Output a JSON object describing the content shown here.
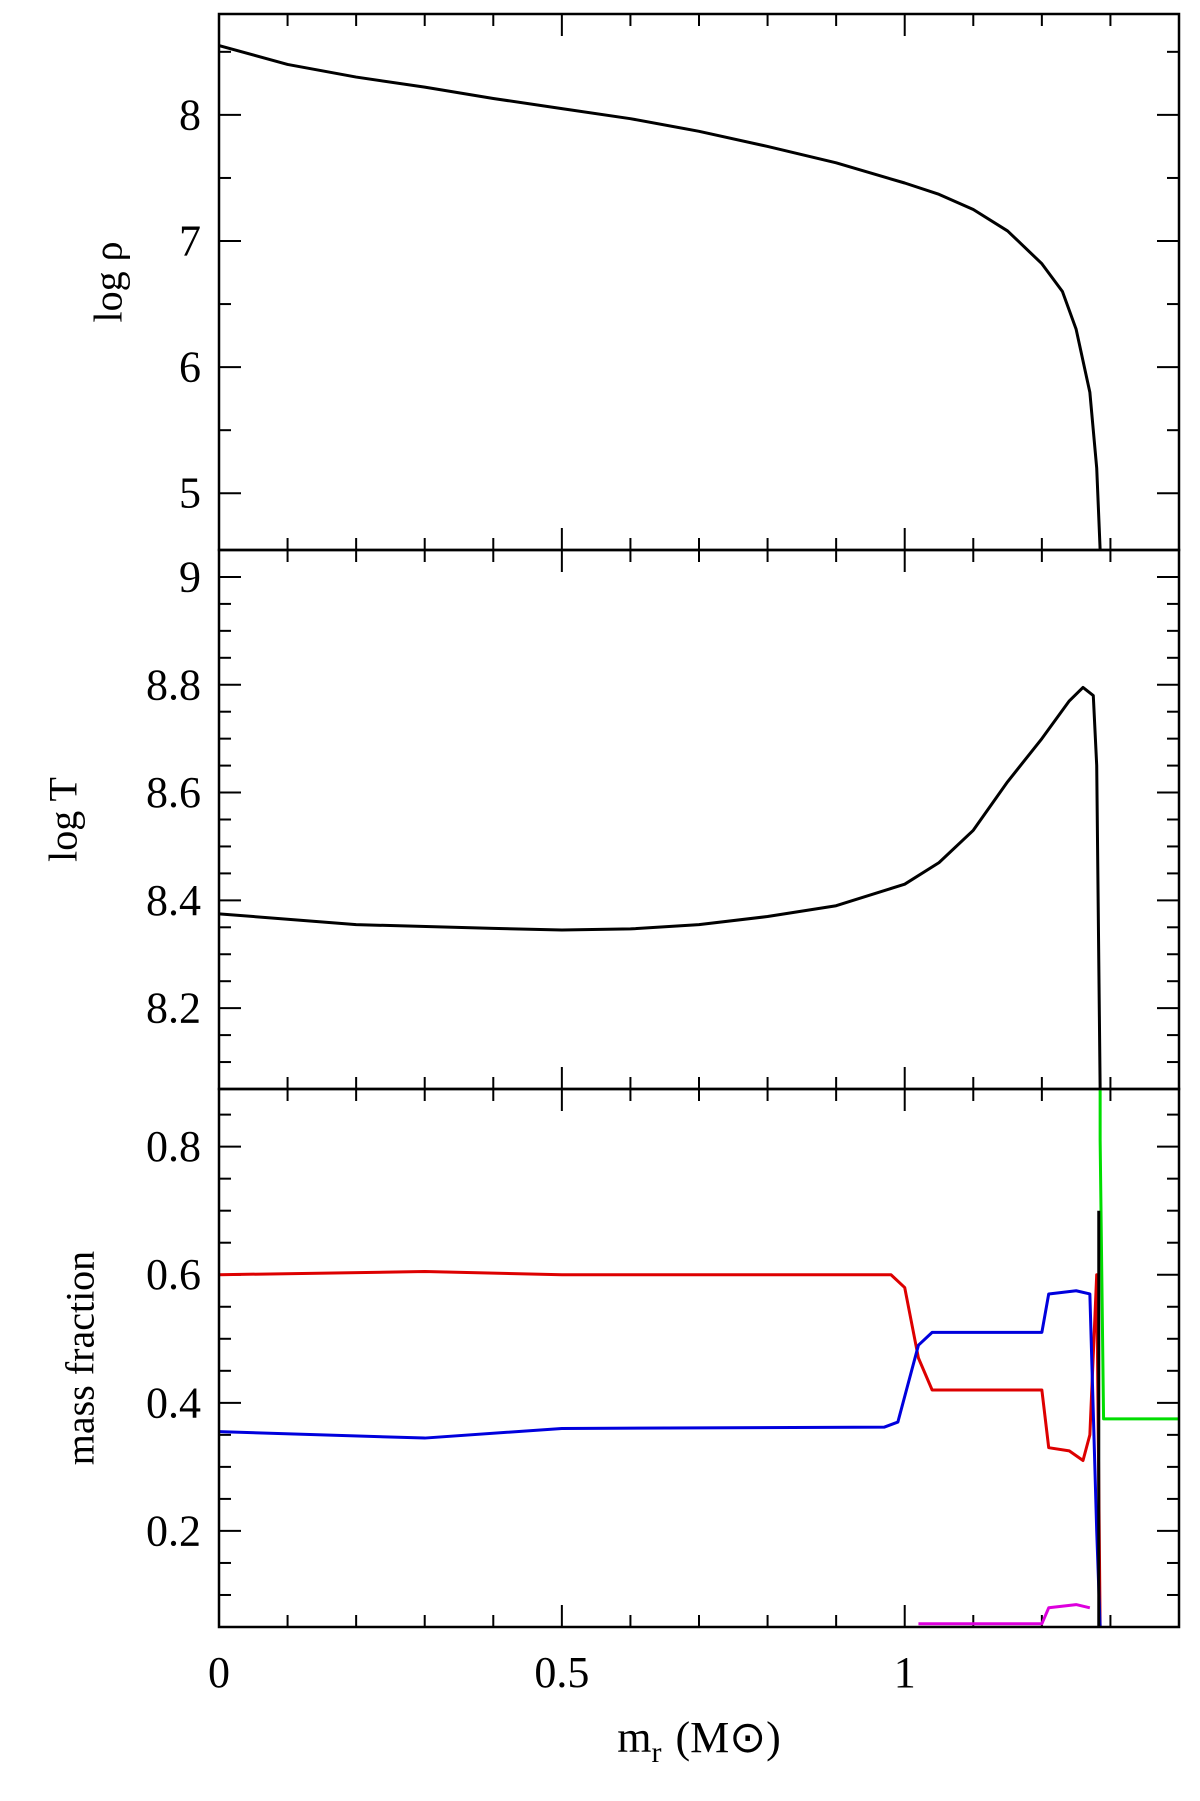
{
  "chart_data": [
    {
      "type": "line",
      "ylabel": "log ρ",
      "xlim": [
        0,
        1.4
      ],
      "xticks": [
        0,
        0.5,
        1
      ],
      "minor_xticks": [
        0.1,
        0.2,
        0.3,
        0.4,
        0.6,
        0.7,
        0.8,
        0.9,
        1.1,
        1.2,
        1.3
      ],
      "xtick_labels": false,
      "ylim": [
        4.55,
        8.8
      ],
      "yticks": [
        5,
        6,
        7,
        8
      ],
      "minor_yticks": [
        5.5,
        6.5,
        7.5,
        8.5
      ],
      "series": [
        {
          "color": "#000000",
          "x": [
            0,
            0.1,
            0.2,
            0.3,
            0.4,
            0.5,
            0.6,
            0.7,
            0.8,
            0.9,
            1.0,
            1.05,
            1.1,
            1.15,
            1.2,
            1.23,
            1.25,
            1.27,
            1.28,
            1.285
          ],
          "values": [
            8.55,
            8.4,
            8.3,
            8.22,
            8.13,
            8.05,
            7.97,
            7.87,
            7.75,
            7.62,
            7.46,
            7.37,
            7.25,
            7.08,
            6.82,
            6.6,
            6.3,
            5.8,
            5.2,
            4.55
          ]
        }
      ]
    },
    {
      "type": "line",
      "ylabel": "log T",
      "xlim": [
        0,
        1.4
      ],
      "xticks": [
        0,
        0.5,
        1
      ],
      "minor_xticks": [
        0.1,
        0.2,
        0.3,
        0.4,
        0.6,
        0.7,
        0.8,
        0.9,
        1.1,
        1.2,
        1.3
      ],
      "xtick_labels": false,
      "ylim": [
        8.05,
        9.05
      ],
      "yticks": [
        8.2,
        8.4,
        8.6,
        8.8,
        9
      ],
      "minor_yticks": [
        8.1,
        8.15,
        8.25,
        8.3,
        8.35,
        8.45,
        8.5,
        8.55,
        8.65,
        8.7,
        8.75,
        8.85,
        8.9,
        8.95
      ],
      "series": [
        {
          "color": "#000000",
          "x": [
            0,
            0.2,
            0.4,
            0.5,
            0.6,
            0.7,
            0.8,
            0.9,
            1.0,
            1.05,
            1.1,
            1.15,
            1.2,
            1.24,
            1.26,
            1.275,
            1.28,
            1.285
          ],
          "values": [
            8.375,
            8.355,
            8.348,
            8.345,
            8.347,
            8.355,
            8.37,
            8.39,
            8.43,
            8.47,
            8.53,
            8.62,
            8.7,
            8.77,
            8.795,
            8.78,
            8.65,
            8.05
          ]
        }
      ]
    },
    {
      "type": "line",
      "ylabel": "mass fraction",
      "xlabel": {
        "main": "m",
        "subscript": "r",
        "unit": "(M⊙)"
      },
      "xlim": [
        0,
        1.4
      ],
      "xticks": [
        0,
        0.5,
        1
      ],
      "minor_xticks": [
        0.1,
        0.2,
        0.3,
        0.4,
        0.6,
        0.7,
        0.8,
        0.9,
        1.1,
        1.2,
        1.3
      ],
      "xtick_labels": true,
      "ylim": [
        0.05,
        0.89
      ],
      "yticks": [
        0.2,
        0.4,
        0.6,
        0.8
      ],
      "minor_yticks": [
        0.1,
        0.15,
        0.25,
        0.3,
        0.35,
        0.45,
        0.5,
        0.55,
        0.65,
        0.7,
        0.75,
        0.85
      ],
      "series": [
        {
          "color": "#dd0000",
          "x": [
            0,
            0.3,
            0.5,
            0.98,
            1.0,
            1.02,
            1.04,
            1.2,
            1.21,
            1.24,
            1.26,
            1.27,
            1.28,
            1.285
          ],
          "values": [
            0.6,
            0.605,
            0.6,
            0.6,
            0.58,
            0.47,
            0.42,
            0.42,
            0.33,
            0.325,
            0.31,
            0.35,
            0.6,
            0.05
          ]
        },
        {
          "color": "#0000dd",
          "x": [
            0,
            0.3,
            0.5,
            0.97,
            0.99,
            1.02,
            1.04,
            1.2,
            1.21,
            1.25,
            1.27,
            1.28,
            1.285
          ],
          "values": [
            0.355,
            0.345,
            0.36,
            0.362,
            0.37,
            0.49,
            0.51,
            0.51,
            0.57,
            0.575,
            0.57,
            0.2,
            0.05
          ]
        },
        {
          "color": "#dd00dd",
          "x": [
            1.02,
            1.2,
            1.21,
            1.25,
            1.27
          ],
          "values": [
            0.055,
            0.055,
            0.08,
            0.085,
            0.08
          ]
        },
        {
          "color": "#00dd00",
          "x": [
            1.285,
            1.285,
            1.29,
            1.4
          ],
          "values": [
            0.89,
            0.81,
            0.375,
            0.375
          ]
        },
        {
          "color": "#000000",
          "x": [
            1.283,
            1.283
          ],
          "values": [
            0.7,
            0.05
          ]
        }
      ]
    }
  ]
}
